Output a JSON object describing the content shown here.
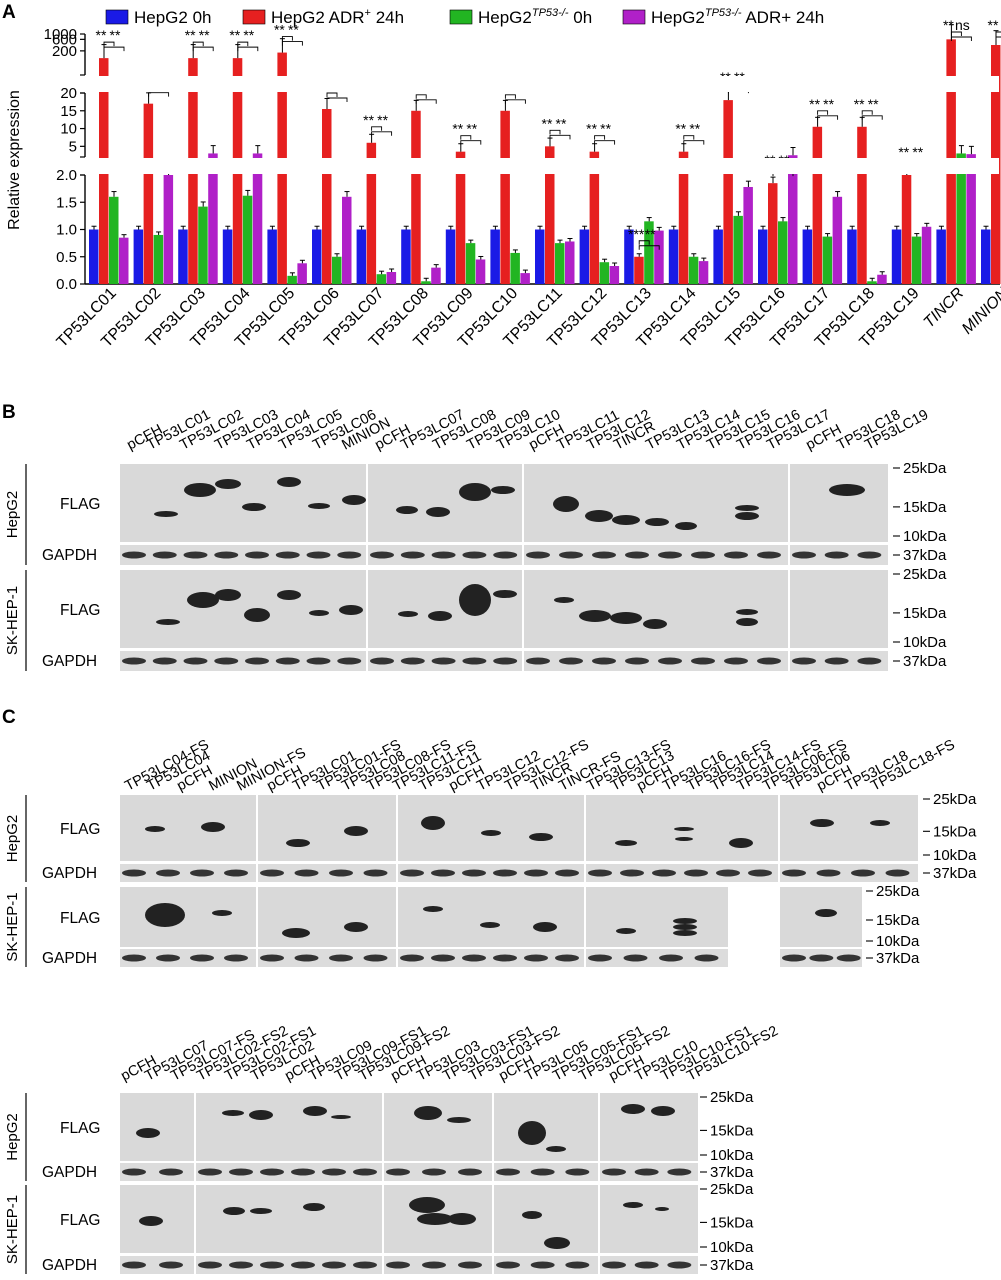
{
  "panel_a": {
    "letter": "A",
    "ylabel": "Relative expression",
    "legend": [
      {
        "base": "HepG2 0h",
        "sup": "",
        "tail": "",
        "color": "#1a1ae6"
      },
      {
        "base": "HepG2 ADR",
        "sup": "+",
        "tail": " 24h",
        "color": "#e62020"
      },
      {
        "base": "HepG2",
        "sup": "TP53-/-",
        "tail": " 0h",
        "color": "#22b522"
      },
      {
        "base": "HepG2",
        "sup": "TP53-/-",
        "tail": " ADR+ 24h",
        "color": "#b020c8"
      }
    ],
    "ticks_top": [
      "1000",
      "600",
      "200"
    ],
    "ticks_mid": [
      "20",
      "15",
      "10",
      "5"
    ],
    "ticks_bot": [
      "2.0",
      "1.5",
      "1.0",
      "0.5",
      "0.0"
    ],
    "chart_data": {
      "type": "bar",
      "categories": [
        "TP53LC01",
        "TP53LC02",
        "TP53LC03",
        "TP53LC04",
        "TP53LC05",
        "TP53LC06",
        "TP53LC07",
        "TP53LC08",
        "TP53LC09",
        "TP53LC10",
        "TP53LC11",
        "TP53LC12",
        "TP53LC13",
        "TP53LC14",
        "TP53LC15",
        "TP53LC16",
        "TP53LC17",
        "TP53LC18",
        "TP53LC19",
        "TINCR",
        "MINION"
      ],
      "italic_categories": [
        "TINCR",
        "MINION"
      ],
      "y_scale": "broken: 0-2, 2-20, 20-1000",
      "series": [
        {
          "name": "HepG2 0h",
          "color": "#1a1ae6",
          "values": [
            1,
            1,
            1,
            1,
            1,
            1,
            1,
            1,
            1,
            1,
            1,
            1,
            1,
            1,
            1,
            1,
            1,
            1,
            1,
            1,
            1
          ]
        },
        {
          "name": "HepG2 ADR+ 24h",
          "color": "#e62020",
          "values": [
            100,
            17,
            100,
            100,
            170,
            15.5,
            6,
            15,
            3.5,
            15,
            5,
            3.5,
            0.5,
            3.5,
            18,
            1.85,
            10.5,
            10.5,
            2,
            600,
            350
          ]
        },
        {
          "name": "HepG2TP53-/- 0h",
          "color": "#22b522",
          "values": [
            1.6,
            0.9,
            1.42,
            1.62,
            0.15,
            0.5,
            0.18,
            0.05,
            0.75,
            0.57,
            0.75,
            0.4,
            1.15,
            0.5,
            1.25,
            1.15,
            0.87,
            0.05,
            0.87,
            3,
            0.25
          ]
        },
        {
          "name": "HepG2TP53-/- ADR+ 24h",
          "color": "#b020c8",
          "values": [
            0.85,
            2.0,
            3,
            3,
            0.38,
            1.6,
            0.22,
            0.3,
            0.45,
            0.2,
            0.78,
            0.33,
            0.98,
            0.42,
            1.78,
            2.5,
            1.6,
            0.17,
            1.05,
            2.8,
            1.8
          ]
        }
      ],
      "significance": [
        "**",
        "**",
        "**",
        "**",
        "**",
        "**",
        "**",
        "**",
        "**",
        "**",
        "**",
        "**",
        "**",
        "**",
        "**",
        "**",
        "**",
        "**",
        "**",
        "**",
        "**",
        "**",
        "**",
        "**",
        "***",
        "**",
        "**",
        "**",
        "**",
        "**",
        "**",
        "**",
        "**",
        "**",
        "**",
        "**",
        "**",
        "**",
        "**",
        "ns",
        "**",
        "**",
        "**",
        "**",
        "**",
        "**",
        "**",
        "**",
        "**",
        "**"
      ]
    }
  },
  "panel_b": {
    "letter": "B",
    "lanes": [
      "pCFH",
      "TP53LC01",
      "TP53LC02",
      "TP53LC03",
      "TP53LC04",
      "TP53LC05",
      "TP53LC06",
      "MINION",
      "pCFH",
      "TP53LC07",
      "TP53LC08",
      "TP53LC09",
      "TP53LC10",
      "pCFH",
      "TP53LC11",
      "TP53LC12",
      "TINCR",
      "TP53LC13",
      "TP53LC14",
      "TP53LC15",
      "TP53LC16",
      "TP53LC17",
      "pCFH",
      "TP53LC18",
      "TP53LC19"
    ],
    "cell_lines": [
      "HepG2",
      "SK-HEP-1"
    ],
    "rows": [
      "FLAG",
      "GAPDH"
    ],
    "markers": [
      "25kDa",
      "15kDa",
      "10kDa",
      "37kDa"
    ]
  },
  "panel_c": {
    "letter": "C",
    "lanes": [
      "TP53LC04-FS",
      "TP53LC04",
      "pCFH",
      "MINION",
      "MINION-FS",
      "pCFH",
      "TP53LC01",
      "TP53LC01-FS",
      "TP53LC08",
      "TP53LC08-FS",
      "TP53LC11-FS",
      "TP53LC11",
      "pCFH",
      "TP53LC12",
      "TP53LC12-FS",
      "TINCR",
      "TINCR-FS",
      "TP53LC13-FS",
      "TP53LC13",
      "pCFH",
      "TP53LC16",
      "TP53LC16-FS",
      "TP53LC14",
      "TP53LC14-FS",
      "TP53LC06-FS",
      "TP53LC06",
      "pCFH",
      "TP53LC18",
      "TP53LC18-FS"
    ],
    "cell_lines": [
      "HepG2",
      "SK-HEP-1"
    ],
    "rows": [
      "FLAG",
      "GAPDH"
    ],
    "markers": [
      "25kDa",
      "15kDa",
      "10kDa",
      "37kDa"
    ]
  },
  "panel_d": {
    "lanes": [
      "pCFH",
      "TP53LC07",
      "TP53LC07-FS",
      "TP53LC02-FS2",
      "TP53LC02-FS1",
      "TP53LC02",
      "pCFH",
      "TP53LC09",
      "TP53LC09-FS1",
      "TP53LC09-FS2",
      "pCFH",
      "TP53LC03",
      "TP53LC03-FS1",
      "TP53LC03-FS2",
      "pCFH",
      "TP53LC05",
      "TP53LC05-FS1",
      "TP53LC05-FS2",
      "pCFH",
      "TP53LC10",
      "TP53LC10-FS1",
      "TP53LC10-FS2"
    ],
    "cell_lines": [
      "HepG2",
      "SK-HEP-1"
    ],
    "rows": [
      "FLAG",
      "GAPDH"
    ],
    "markers": [
      "25kDa",
      "15kDa",
      "10kDa",
      "37kDa"
    ]
  }
}
